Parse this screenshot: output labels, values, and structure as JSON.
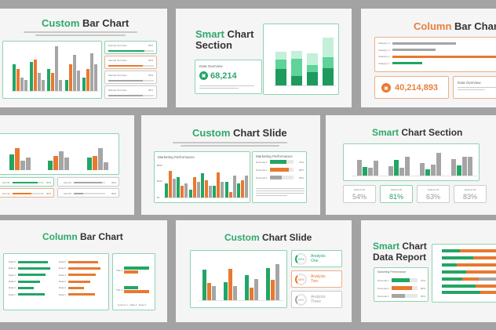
{
  "colors": {
    "green": "#22a565",
    "orange": "#e8792f",
    "gray": "#a5a5a5",
    "light_green": "#5fd39a",
    "pale_green": "#c2f0d8",
    "dark_green": "#1d9a5c",
    "background": "#a3a3a3"
  },
  "s1": {
    "title_accent": "Custom",
    "title_rest": " Bar Chart",
    "cards": [
      {
        "label": "Sample Text Here",
        "value": "00%",
        "progress": 0.8
      },
      {
        "label": "Sample Text Here",
        "value": "00%",
        "progress": 0.75
      },
      {
        "label": "Sample Text Here",
        "value": "00%",
        "progress": 0.75
      },
      {
        "label": "Sample Text Here",
        "value": "00%",
        "progress": 0.75
      }
    ],
    "chart": {
      "max": 10,
      "groups": [
        [
          6,
          5,
          3,
          2.5
        ],
        [
          6.5,
          7,
          4,
          2.5
        ],
        [
          5,
          4,
          10,
          2.5
        ],
        [
          2.5,
          6,
          8,
          4.5
        ],
        [
          3,
          5,
          8.5,
          6
        ]
      ]
    }
  },
  "s2": {
    "title_accent": "Smart",
    "title_rest": " Chart",
    "title_line2": "Section",
    "overview_label": "Data Overview",
    "overview_value": "68,214",
    "icon": "briefcase-icon",
    "chart": {
      "max": 7,
      "stacks": [
        [
          2.1,
          1.2,
          1
        ],
        [
          1.2,
          2.2,
          1
        ],
        [
          1.7,
          0.9,
          1.5
        ],
        [
          2.2,
          1.4,
          2.5
        ]
      ]
    }
  },
  "s3": {
    "title_accent": "Column",
    "title_rest": " Bar Chart",
    "big_value": "40,214,893",
    "overview_label": "Data Overview",
    "icon": "briefcase-icon",
    "chart": {
      "max": 10,
      "rows": [
        {
          "label": "Category 4",
          "value": 5.9,
          "color": "gray"
        },
        {
          "label": "Category 3",
          "value": 4.0,
          "color": "gray"
        },
        {
          "label": "Category 2",
          "value": 10,
          "color": "orange"
        },
        {
          "label": "Category 1",
          "value": 2.8,
          "color": "green"
        }
      ]
    }
  },
  "s4": {
    "chart": {
      "max": 10,
      "groups": [
        [
          5,
          7,
          3,
          4
        ],
        [
          3,
          4.5,
          6,
          4
        ],
        [
          4,
          4.5,
          7,
          2.5
        ]
      ]
    },
    "cards": [
      {
        "label": "Text 01",
        "value": "00%",
        "progress": 0.8,
        "color": "green"
      },
      {
        "label": "Text 02",
        "value": "00%",
        "progress": 0.6,
        "color": "orange"
      },
      {
        "label": "Text 03",
        "value": "00%",
        "progress": 0.9,
        "color": "gray"
      },
      {
        "label": "Text 04",
        "value": "00%",
        "progress": 0.3,
        "color": "gray"
      }
    ]
  },
  "s5": {
    "title_accent": "Custom",
    "title_rest": " Chart Slide",
    "chart_label": "Marketing Performance",
    "y_ticks": [
      "$500",
      "$250",
      "$0"
    ],
    "chart": {
      "max": 10,
      "groups": [
        [
          4,
          7.8,
          5.5
        ],
        [
          6,
          3.3,
          4
        ],
        [
          2.2,
          6,
          4.5
        ],
        [
          7,
          5,
          3.3
        ],
        [
          3.3,
          7.2,
          4.5
        ],
        [
          4.5,
          1.6,
          6.3
        ],
        [
          4,
          5,
          6.3
        ]
      ]
    },
    "panel_label": "Marketing Performance",
    "rows": [
      {
        "label": "Personal 1",
        "value": "70%",
        "progress": 0.7,
        "color": "green"
      },
      {
        "label": "Personal 2",
        "value": "80%",
        "progress": 0.8,
        "color": "orange"
      },
      {
        "label": "Personal 3",
        "value": "50%",
        "progress": 0.5,
        "color": "gray"
      }
    ]
  },
  "s6": {
    "title_accent": "Smart",
    "title_rest": " Chart Section",
    "chart": {
      "max": 10,
      "groups": [
        [
          6,
          3.3,
          2.8,
          5.7
        ],
        [
          3.5,
          6,
          2.8,
          7
        ],
        [
          4.8,
          2.5,
          4.2,
          8.5
        ],
        [
          6.2,
          3.9,
          7,
          7
        ]
      ],
      "colors": [
        [
          "gray",
          "green",
          "gray",
          "gray"
        ],
        [
          "gray",
          "green",
          "gray",
          "gray"
        ],
        [
          "gray",
          "green",
          "gray",
          "gray"
        ],
        [
          "gray",
          "green",
          "gray",
          "gray"
        ]
      ]
    },
    "options": [
      {
        "label": "Options 01",
        "value": "54%"
      },
      {
        "label": "Options 02",
        "value": "81%"
      },
      {
        "label": "Options 03",
        "value": "63%"
      },
      {
        "label": "Options 04",
        "value": "83%"
      }
    ]
  },
  "s7": {
    "title_accent": "Column",
    "title_rest": " Bar Chart",
    "green_rows": [
      {
        "label": "Data 6",
        "value": 4.9
      },
      {
        "label": "Data 5",
        "value": 5.4
      },
      {
        "label": "Data 4",
        "value": 4.6
      },
      {
        "label": "Data 3",
        "value": 3.6
      },
      {
        "label": "Data 2",
        "value": 2.6
      },
      {
        "label": "Data 1",
        "value": 4.4
      }
    ],
    "orange_rows": [
      {
        "label": "Data 6",
        "value": 4.9
      },
      {
        "label": "Data 5",
        "value": 5.4
      },
      {
        "label": "Data 4",
        "value": 4.6
      },
      {
        "label": "Data 3",
        "value": 3.6
      },
      {
        "label": "Data 2",
        "value": 2.6
      },
      {
        "label": "Data 1",
        "value": 4.4
      }
    ],
    "axis": [
      "0",
      "2",
      "4",
      "6"
    ],
    "side": {
      "rows": [
        {
          "label": "Title 2",
          "values": [
            4,
            2.2
          ]
        },
        {
          "label": "Title 1",
          "values": [
            2.2,
            4
          ]
        }
      ],
      "legend": [
        "Column 1",
        "Data 2",
        "Data 3"
      ]
    }
  },
  "s8": {
    "title_accent": "Custom",
    "title_rest": " Chart Slide",
    "chart": {
      "max": 6,
      "groups": [
        [
          4.3,
          2.4,
          2
        ],
        [
          2.5,
          4.4,
          2
        ],
        [
          3.5,
          1.8,
          3
        ],
        [
          4.5,
          2.8,
          5
        ]
      ],
      "categories": [
        "Data 1",
        "Data 2",
        "Data 3",
        "Data 4"
      ]
    },
    "analysis": [
      {
        "pct": "20%",
        "progress": 0.2,
        "line1": "Analysis",
        "line2": "One",
        "color": "green"
      },
      {
        "pct": "45%",
        "progress": 0.45,
        "line1": "Analysis",
        "line2": "Two",
        "color": "orange"
      },
      {
        "pct": "65%",
        "progress": 0.65,
        "line1": "Analysis",
        "line2": "Three",
        "color": "gray"
      }
    ]
  },
  "s9": {
    "title_accent": "Smart",
    "title_rest": " Chart",
    "title_line2": "Data Report",
    "panel_label": "Marketing Performance",
    "rows": [
      {
        "label": "Personal 1",
        "value": "70%",
        "progress": 0.7,
        "color": "green"
      },
      {
        "label": "Personal 2",
        "value": "80%",
        "progress": 0.8,
        "color": "orange"
      },
      {
        "label": "Personal 3",
        "value": "50%",
        "progress": 0.5,
        "color": "gray"
      }
    ],
    "stacks": [
      [
        27,
        73,
        0
      ],
      [
        47,
        53,
        0
      ],
      [
        22,
        68,
        10
      ],
      [
        37,
        63,
        0
      ],
      [
        31,
        24,
        45
      ],
      [
        51,
        49,
        0
      ],
      [
        58,
        42,
        0
      ]
    ]
  }
}
